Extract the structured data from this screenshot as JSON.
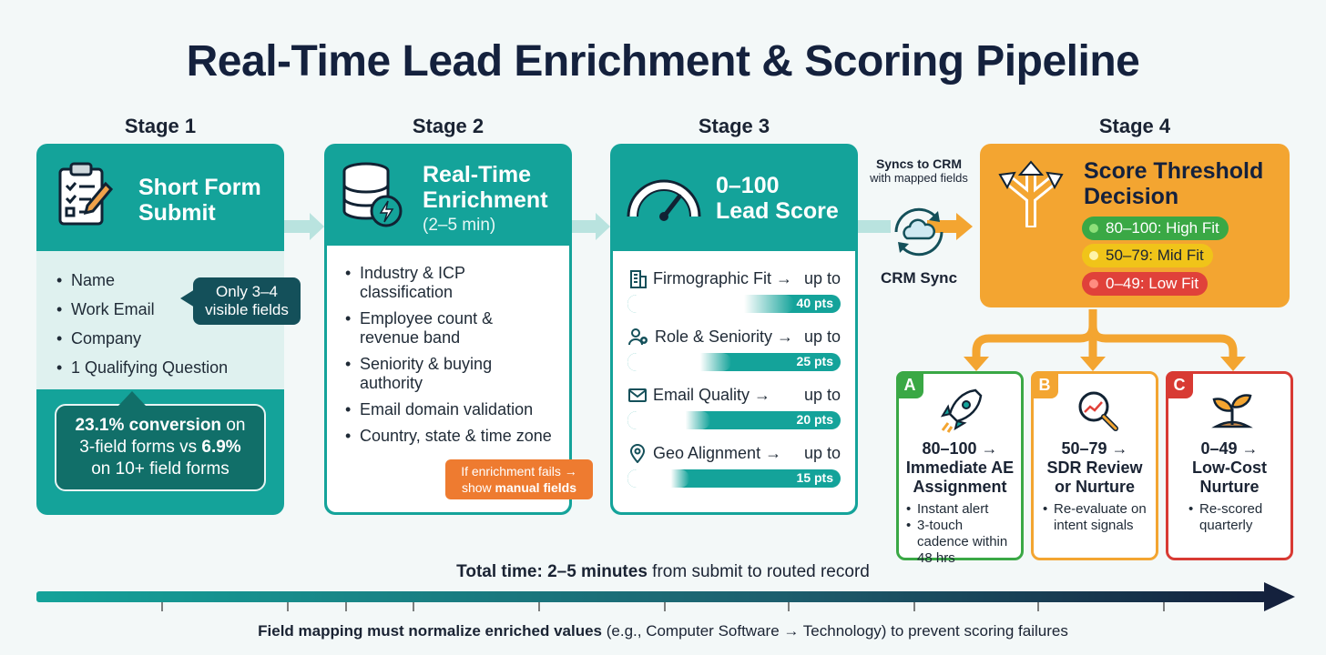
{
  "title": "Real-Time Lead Enrichment & Scoring Pipeline",
  "stages": [
    {
      "label": "Stage 1",
      "title_line1": "Short Form",
      "title_line2": "Submit",
      "bullets": [
        "Name",
        "Work Email",
        "Company",
        "1 Qualifying Question"
      ],
      "callout": "Only 3–4 visible fields",
      "stat_bold1": "23.1% conversion",
      "stat_text1": " on",
      "stat_text2": "3-field forms vs ",
      "stat_bold2": "6.9%",
      "stat_text3": "on 10+ field forms"
    },
    {
      "label": "Stage 2",
      "title_line1": "Real-Time",
      "title_line2": "Enrichment",
      "subtitle": "(2–5 min)",
      "bullets": [
        "Industry & ICP classification",
        "Employee count & revenue band",
        "Seniority & buying authority",
        "Email domain validation",
        "Country, state & time zone"
      ],
      "warning_line1": "If enrichment fails →",
      "warning_line2_prefix": "show ",
      "warning_line2_bold": "manual fields"
    },
    {
      "label": "Stage 3",
      "title_line1": "0–100",
      "title_line2": "Lead Score",
      "metrics": [
        {
          "name": "Firmographic Fit →",
          "suffix": "up to",
          "points": "40 pts",
          "fill": 0.4,
          "icon": "building-icon"
        },
        {
          "name": "Role & Seniority →",
          "suffix": "up to",
          "points": "25 pts",
          "fill": 0.25,
          "icon": "user-gear-icon"
        },
        {
          "name": "Email Quality →",
          "suffix": "up to",
          "points": "20 pts",
          "fill": 0.2,
          "icon": "envelope-icon"
        },
        {
          "name": "Geo Alignment →",
          "suffix": "up to",
          "points": "15 pts",
          "fill": 0.15,
          "icon": "map-pin-icon"
        }
      ]
    },
    {
      "label": "Stage 4",
      "title_line1": "Score Threshold",
      "title_line2": "Decision",
      "pills": [
        {
          "text": "80–100: High Fit",
          "color": "#3aa845",
          "dot": "#8ee07a"
        },
        {
          "text": "50–79: Mid Fit",
          "color": "#f0c419",
          "dot": "#fff4a8"
        },
        {
          "text": "0–49: Low Fit",
          "color": "#e0413a",
          "dot": "#ff8c80"
        }
      ]
    }
  ],
  "crm": {
    "top_line1": "Syncs to CRM",
    "top_line2": "with mapped fields",
    "label": "CRM Sync"
  },
  "outcomes": [
    {
      "letter": "A",
      "color": "#3aa845",
      "title_line1": "80–100 →",
      "title_line2": "Immediate AE",
      "title_line3": "Assignment",
      "bullets": [
        "Instant alert",
        "3-touch cadence within 48 hrs"
      ],
      "icon": "rocket-icon"
    },
    {
      "letter": "B",
      "color": "#f3a531",
      "title_line1": "50–79 →",
      "title_line2": "SDR Review",
      "title_line3": "or Nurture",
      "bullets": [
        "Re-evaluate on intent signals"
      ],
      "icon": "magnifier-trend-icon"
    },
    {
      "letter": "C",
      "color": "#d83a33",
      "title_line1": "0–49 →",
      "title_line2": "Low-Cost",
      "title_line3": "Nurture",
      "bullets": [
        "Re-scored quarterly"
      ],
      "icon": "sprout-icon"
    }
  ],
  "total_bold": "Total time: 2–5 minutes",
  "total_rest": " from submit to routed record",
  "footer_bold": "Field mapping must normalize enriched values",
  "footer_rest": " (e.g., Computer Software → Technology) to prevent scoring failures"
}
